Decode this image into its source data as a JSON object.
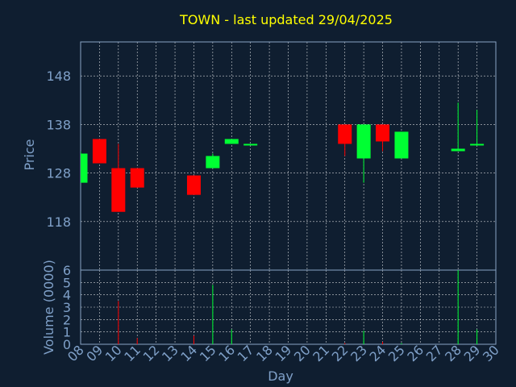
{
  "chart_data": {
    "type": "candlestick",
    "title": "TOWN - last updated 29/04/2025",
    "xlabel": "Day",
    "ylabel": "Price",
    "volume_label": "Volume (0000)",
    "x_ticks": [
      "08",
      "09",
      "10",
      "11",
      "12",
      "13",
      "14",
      "15",
      "16",
      "17",
      "18",
      "19",
      "20",
      "21",
      "22",
      "23",
      "24",
      "25",
      "26",
      "27",
      "28",
      "29",
      "30"
    ],
    "price_ticks": [
      118,
      128,
      138,
      148
    ],
    "price_range": [
      108,
      155
    ],
    "volume_ticks": [
      0,
      1,
      2,
      3,
      4,
      5,
      6
    ],
    "volume_range": [
      0,
      6
    ],
    "grid": true,
    "candles": [
      {
        "day": 8,
        "open": 126,
        "high": 132.5,
        "low": 126,
        "close": 132,
        "volume": 0
      },
      {
        "day": 9,
        "open": 135,
        "high": 135,
        "low": 130,
        "close": 130,
        "volume": 0
      },
      {
        "day": 10,
        "open": 129,
        "high": 134,
        "low": 120,
        "close": 120,
        "volume": 3.5
      },
      {
        "day": 11,
        "open": 129,
        "high": 129,
        "low": 125,
        "close": 125,
        "volume": 0.5
      },
      {
        "day": 14,
        "open": 127.5,
        "high": 127.5,
        "low": 123.5,
        "close": 123.5,
        "volume": 0.7
      },
      {
        "day": 15,
        "open": 129,
        "high": 132,
        "low": 129,
        "close": 131.5,
        "volume": 4.8
      },
      {
        "day": 16,
        "open": 134,
        "high": 135,
        "low": 134,
        "close": 135,
        "volume": 1.2
      },
      {
        "day": 17,
        "open": 133.8,
        "high": 134,
        "low": 133.8,
        "close": 134,
        "volume": 0
      },
      {
        "day": 22,
        "open": 138,
        "high": 138,
        "low": 131.5,
        "close": 134,
        "volume": 0.1
      },
      {
        "day": 23,
        "open": 131,
        "high": 138,
        "low": 126,
        "close": 138,
        "volume": 1.1
      },
      {
        "day": 24,
        "open": 138,
        "high": 138,
        "low": 132.5,
        "close": 134.5,
        "volume": 0.2
      },
      {
        "day": 25,
        "open": 131,
        "high": 136.5,
        "low": 131,
        "close": 136.5,
        "volume": 0.1
      },
      {
        "day": 28,
        "open": 132.5,
        "high": 142.5,
        "low": 132.5,
        "close": 133,
        "volume": 6
      },
      {
        "day": 29,
        "open": 133.8,
        "high": 141,
        "low": 133.8,
        "close": 134,
        "volume": 1.2
      }
    ],
    "colors": {
      "background": "#0f1e30",
      "grid": "#ffffff",
      "up": "#00ff33",
      "down": "#ff0000",
      "axis_text": "#7fa0c8",
      "title": "#ffff00"
    }
  }
}
